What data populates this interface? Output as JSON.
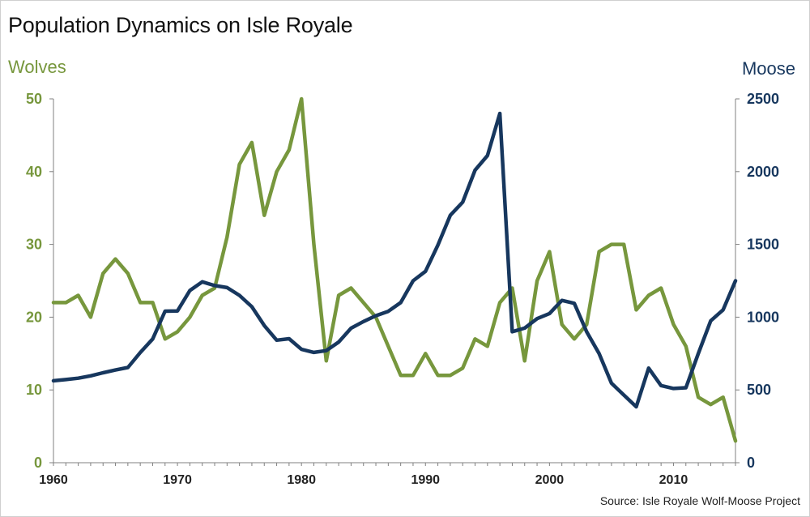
{
  "chart_data": {
    "type": "line",
    "title": "Population Dynamics on Isle Royale",
    "y_left_label": "Wolves",
    "y_right_label": "Moose",
    "source": "Source: Isle Royale Wolf-Moose Project",
    "xlim": [
      1960,
      2015
    ],
    "x_ticks": [
      1960,
      1970,
      1980,
      1990,
      2000,
      2010
    ],
    "y_left_lim": [
      0,
      50
    ],
    "y_left_ticks": [
      0,
      10,
      20,
      30,
      40,
      50
    ],
    "y_right_lim": [
      0,
      2500
    ],
    "y_right_ticks": [
      0,
      500,
      1000,
      1500,
      2000,
      2500
    ],
    "colors": {
      "wolves": "#77973d",
      "moose": "#17375e"
    },
    "x": [
      1960,
      1961,
      1962,
      1963,
      1964,
      1965,
      1966,
      1967,
      1968,
      1969,
      1970,
      1971,
      1972,
      1973,
      1974,
      1975,
      1976,
      1977,
      1978,
      1979,
      1980,
      1981,
      1982,
      1983,
      1984,
      1985,
      1986,
      1987,
      1988,
      1989,
      1990,
      1991,
      1992,
      1993,
      1994,
      1995,
      1996,
      1997,
      1998,
      1999,
      2000,
      2001,
      2002,
      2003,
      2004,
      2005,
      2006,
      2007,
      2008,
      2009,
      2010,
      2011,
      2012,
      2013,
      2014,
      2015
    ],
    "series": [
      {
        "name": "Wolves",
        "axis": "left",
        "values": [
          22,
          22,
          23,
          20,
          26,
          28,
          26,
          22,
          22,
          17,
          18,
          20,
          23,
          24,
          31,
          41,
          44,
          34,
          40,
          43,
          50,
          30,
          14,
          23,
          24,
          22,
          20,
          16,
          12,
          12,
          15,
          12,
          12,
          13,
          17,
          16,
          22,
          24,
          14,
          25,
          29,
          19,
          17,
          19,
          29,
          30,
          30,
          21,
          23,
          24,
          19,
          16,
          9,
          8,
          9,
          3
        ]
      },
      {
        "name": "Moose",
        "axis": "right",
        "values": [
          563,
          571,
          581,
          597,
          618,
          637,
          654,
          757,
          850,
          1041,
          1043,
          1183,
          1243,
          1217,
          1203,
          1150,
          1072,
          942,
          842,
          852,
          779,
          758,
          770,
          829,
          924,
          970,
          1010,
          1040,
          1100,
          1250,
          1315,
          1495,
          1700,
          1790,
          2010,
          2110,
          2400,
          900,
          925,
          990,
          1025,
          1115,
          1095,
          899,
          750,
          546,
          465,
          384,
          650,
          530,
          510,
          515,
          750,
          975,
          1050,
          1250
        ]
      }
    ]
  }
}
